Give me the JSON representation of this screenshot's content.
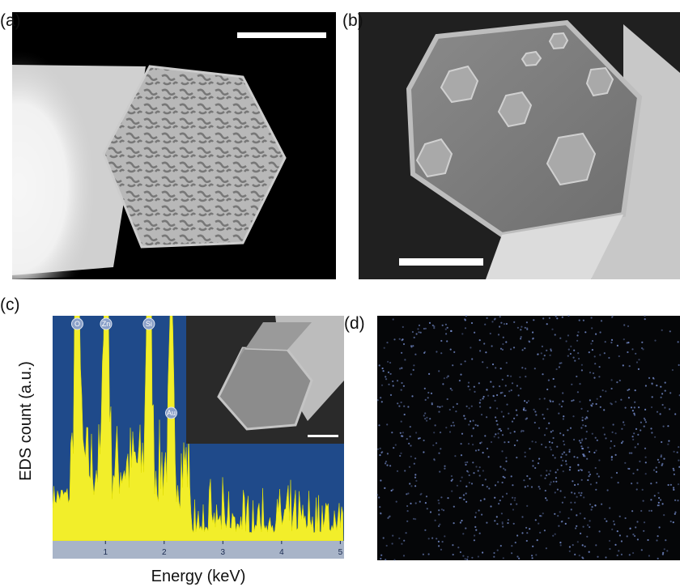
{
  "panels": [
    {
      "label": "(a)"
    },
    {
      "label": "(b)"
    },
    {
      "label": "(c)"
    },
    {
      "label": "(d)"
    }
  ],
  "spectrum": {
    "x_label": "Energy (keV)",
    "y_label": "EDS count (a.u.)",
    "xlim": [
      0.1,
      5.05
    ],
    "xticks": [
      1,
      2,
      3,
      4,
      5
    ],
    "peaks": [
      {
        "label": "O",
        "x": 0.52
      },
      {
        "label": "Zn",
        "x": 1.01
      },
      {
        "label": "Si",
        "x": 1.74
      },
      {
        "label": "Au",
        "x": 2.12
      }
    ]
  }
}
